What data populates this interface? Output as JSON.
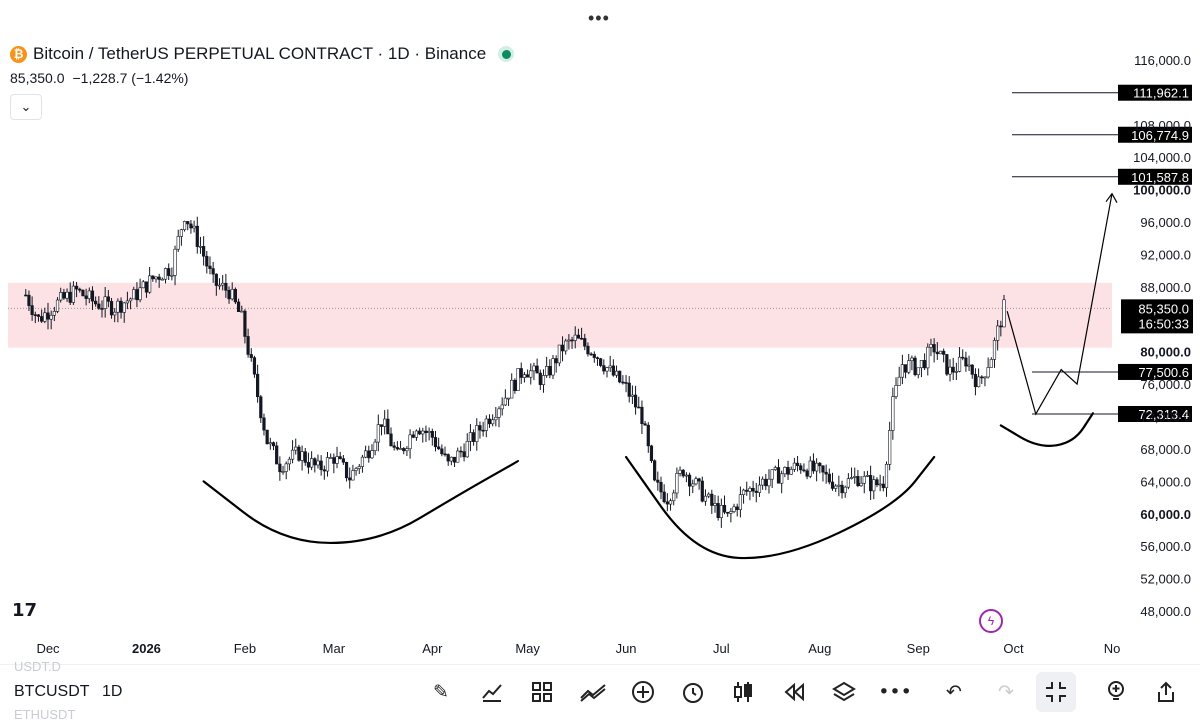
{
  "header": {
    "title": "Bitcoin / TetherUS PERPETUAL CONTRACT · 1D · Binance",
    "last": "85,350.0",
    "change": "−1,228.7 (−1.42%)",
    "collapse_icon": "chevron-down-icon",
    "coin_icon": "bitcoin-icon"
  },
  "chart_data": {
    "type": "candlestick",
    "symbol": "BTCUSDT",
    "interval": "1D",
    "x_labels": [
      "Dec",
      "2026",
      "Feb",
      "Mar",
      "Apr",
      "May",
      "Jun",
      "Jul",
      "Aug",
      "Sep",
      "Oct",
      "No"
    ],
    "x_label_dates": [
      "2025-12-01",
      "2026-01-01",
      "2026-02-01",
      "2026-03-01",
      "2026-04-01",
      "2026-05-01",
      "2026-06-01",
      "2026-07-01",
      "2026-08-01",
      "2026-09-01",
      "2026-10-01",
      "2026-11-01"
    ],
    "y_ticks": [
      48000,
      52000,
      56000,
      60000,
      64000,
      68000,
      72000,
      76000,
      80000,
      84000,
      88000,
      92000,
      96000,
      100000,
      104000,
      108000,
      116000
    ],
    "y_tick_labels": [
      "48,000.0",
      "52,000.0",
      "56,000.0",
      "60,000.0",
      "64,000.0",
      "68,000.0",
      "72,000.0",
      "76,000.0",
      "80,000.0",
      "84,000.0",
      "88,000.0",
      "92,000.0",
      "96,000.0",
      "100,000.0",
      "104,000.0",
      "108,000.0",
      "116,000.0"
    ],
    "y_bold_ticks": [
      60000,
      80000,
      100000
    ],
    "ylim": [
      46000,
      118000
    ],
    "last_price": 85350.0,
    "last_price_label": "85,350.0",
    "countdown": "16:50:33",
    "key_path": [
      [
        "2025-11-24",
        87000
      ],
      [
        "2025-11-28",
        84000
      ],
      [
        "2025-12-04",
        86000
      ],
      [
        "2025-12-10",
        87500
      ],
      [
        "2025-12-16",
        86000
      ],
      [
        "2025-12-22",
        85500
      ],
      [
        "2025-12-28",
        86800
      ],
      [
        "2026-01-03",
        89000
      ],
      [
        "2026-01-09",
        90500
      ],
      [
        "2026-01-13",
        97000
      ],
      [
        "2026-01-18",
        93000
      ],
      [
        "2026-01-22",
        88500
      ],
      [
        "2026-01-27",
        87500
      ],
      [
        "2026-01-31",
        84000
      ],
      [
        "2026-02-04",
        76500
      ],
      [
        "2026-02-08",
        69000
      ],
      [
        "2026-02-12",
        66000
      ],
      [
        "2026-02-18",
        67500
      ],
      [
        "2026-02-24",
        65500
      ],
      [
        "2026-03-01",
        67000
      ],
      [
        "2026-03-06",
        64500
      ],
      [
        "2026-03-12",
        68000
      ],
      [
        "2026-03-16",
        71500
      ],
      [
        "2026-03-21",
        67000
      ],
      [
        "2026-03-27",
        71000
      ],
      [
        "2026-04-01",
        69500
      ],
      [
        "2026-04-06",
        66000
      ],
      [
        "2026-04-12",
        68500
      ],
      [
        "2026-04-18",
        71500
      ],
      [
        "2026-04-24",
        74500
      ],
      [
        "2026-04-30",
        78000
      ],
      [
        "2026-05-06",
        76500
      ],
      [
        "2026-05-12",
        80500
      ],
      [
        "2026-05-16",
        81500
      ],
      [
        "2026-05-22",
        80000
      ],
      [
        "2026-05-27",
        77500
      ],
      [
        "2026-06-01",
        75500
      ],
      [
        "2026-06-06",
        72000
      ],
      [
        "2026-06-10",
        63500
      ],
      [
        "2026-06-14",
        62000
      ],
      [
        "2026-06-19",
        65500
      ],
      [
        "2026-06-24",
        63000
      ],
      [
        "2026-06-28",
        61000
      ],
      [
        "2026-07-03",
        59500
      ],
      [
        "2026-07-08",
        62500
      ],
      [
        "2026-07-14",
        64000
      ],
      [
        "2026-07-20",
        65000
      ],
      [
        "2026-07-26",
        66000
      ],
      [
        "2026-08-01",
        65000
      ],
      [
        "2026-08-07",
        63500
      ],
      [
        "2026-08-13",
        64500
      ],
      [
        "2026-08-18",
        63500
      ],
      [
        "2026-08-21",
        64000
      ],
      [
        "2026-08-24",
        73500
      ],
      [
        "2026-08-27",
        78500
      ],
      [
        "2026-09-01",
        78000
      ],
      [
        "2026-09-06",
        80500
      ],
      [
        "2026-09-11",
        77500
      ],
      [
        "2026-09-16",
        79000
      ],
      [
        "2026-09-20",
        76000
      ],
      [
        "2026-09-24",
        79500
      ],
      [
        "2026-09-26",
        82500
      ],
      [
        "2026-09-28",
        85350
      ]
    ],
    "zone": {
      "low": 80500,
      "high": 88500,
      "color": "#fce2e5"
    },
    "price_levels": [
      {
        "value": 111962.1,
        "label": "111,962.1"
      },
      {
        "value": 106774.9,
        "label": "106,774.9"
      },
      {
        "value": 101587.8,
        "label": "101,587.8"
      },
      {
        "value": 77500.6,
        "label": "77,500.6"
      },
      {
        "value": 72313.4,
        "label": "72,313.4"
      }
    ],
    "projection": [
      [
        "2026-09-29",
        85000
      ],
      [
        "2026-10-08",
        72300
      ],
      [
        "2026-10-16",
        77800
      ],
      [
        "2026-10-21",
        76000
      ],
      [
        "2026-11-01",
        99500
      ]
    ],
    "arcs": [
      {
        "name": "left-base-arc",
        "points": [
          [
            "2026-01-19",
            64000
          ],
          [
            "2026-02-13",
            56400
          ],
          [
            "2026-03-15",
            56400
          ],
          [
            "2026-04-10",
            62500
          ],
          [
            "2026-04-28",
            66500
          ]
        ]
      },
      {
        "name": "middle-base-arc",
        "points": [
          [
            "2026-06-01",
            67000
          ],
          [
            "2026-06-23",
            54800
          ],
          [
            "2026-07-20",
            54300
          ],
          [
            "2026-08-25",
            61000
          ],
          [
            "2026-09-06",
            67000
          ]
        ]
      },
      {
        "name": "right-small-arc",
        "points": [
          [
            "2026-09-27",
            70900
          ],
          [
            "2026-10-09",
            68100
          ],
          [
            "2026-10-20",
            68800
          ],
          [
            "2026-10-26",
            72400
          ]
        ]
      }
    ],
    "colors": {
      "up": "#131722",
      "down": "#131722",
      "up_body": "#ffffff",
      "down_body": "#131722",
      "grid": "#ffffff"
    }
  },
  "toolbar": {
    "symbol": "BTCUSDT",
    "interval": "1D",
    "ghost_above": "USDT.D",
    "ghost_below": "ETHUSDT",
    "icons": [
      "pencil-icon",
      "indicators-icon",
      "layouts-icon",
      "compare-icon",
      "add-icon",
      "alert-icon",
      "candle-type-icon",
      "replay-icon",
      "layers-icon",
      "more-icon",
      "undo-icon",
      "redo-icon",
      "fullscreen-exit-icon",
      "ideas-icon",
      "share-icon"
    ]
  }
}
